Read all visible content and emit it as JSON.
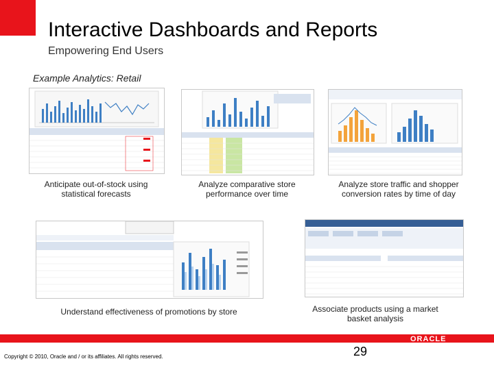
{
  "slide": {
    "title": "Interactive Dashboards and Reports",
    "subtitle": "Empowering End Users",
    "example_label": "Example Analytics: Retail",
    "page_number": "29",
    "copyright": "Copyright © 2010, Oracle and / or its affiliates. All rights reserved.",
    "logo_text": "ORACLE"
  },
  "panels": [
    {
      "caption": "Anticipate out-of-stock using statistical forecasts"
    },
    {
      "caption": "Analyze comparative store performance over time"
    },
    {
      "caption": "Analyze store traffic and shopper conversion rates by time of day"
    },
    {
      "caption": "Understand effectiveness of promotions by store"
    },
    {
      "caption": "Associate products using a market basket analysis"
    }
  ],
  "colors": {
    "accent": "#e8141b",
    "chart_blue": "#3e7fc4",
    "chart_light": "#b8d3ef",
    "grid_green": "#c9e6a3",
    "yellow": "#f5e79e",
    "header": "#d9e2ef"
  }
}
